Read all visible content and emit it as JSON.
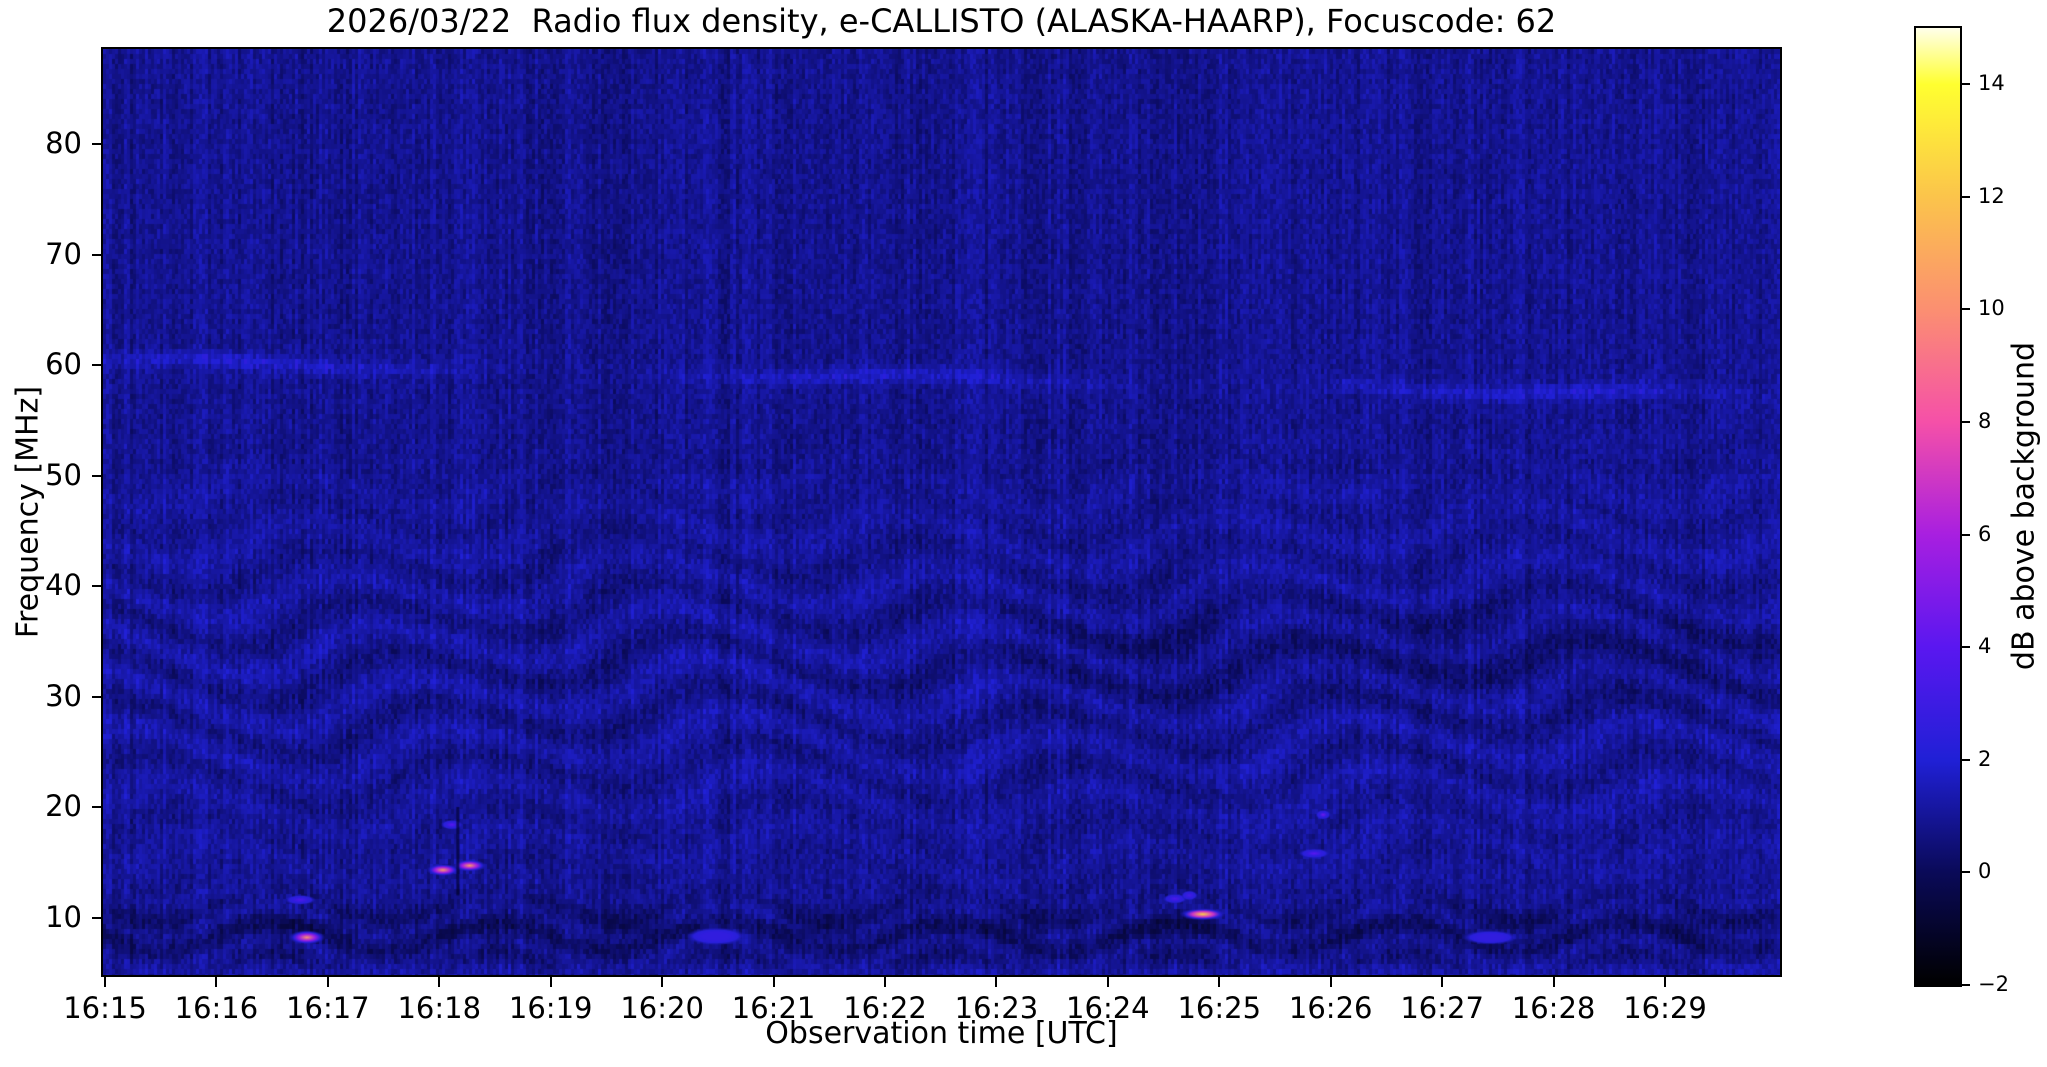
{
  "figure": {
    "title": "2026/03/22  Radio flux density, e-CALLISTO (ALASKA-HAARP), Focuscode: 62",
    "xlabel": "Observation time [UTC]",
    "ylabel": "Frequency [MHz]"
  },
  "chart_data": {
    "type": "heatmap",
    "subtype": "radio-spectrogram",
    "title": "2026/03/22  Radio flux density, e-CALLISTO (ALASKA-HAARP), Focuscode: 62",
    "xlabel": "Observation time [UTC]",
    "ylabel": "Frequency [MHz]",
    "x_tick_labels": [
      "16:15",
      "16:16",
      "16:17",
      "16:18",
      "16:19",
      "16:20",
      "16:21",
      "16:22",
      "16:23",
      "16:24",
      "16:25",
      "16:26",
      "16:27",
      "16:28",
      "16:29"
    ],
    "x_range_minutes": [
      0,
      15.05
    ],
    "x_start_utc": "16:15",
    "y_ticks_mhz": [
      10,
      20,
      30,
      40,
      50,
      60,
      70,
      80
    ],
    "y_range_mhz": [
      4.8,
      88.6
    ],
    "grid": false,
    "background_level_db": 1.0,
    "colorbar": {
      "label": "dB above background",
      "tick_values": [
        -2,
        0,
        2,
        4,
        6,
        8,
        10,
        12,
        14
      ],
      "value_range": [
        -2,
        15
      ],
      "colormap": "gnuplot2-like (black-blue-violet-magenta-pink-orange-yellow-white)",
      "stops": [
        [
          -2,
          "#000000"
        ],
        [
          0,
          "#0a0a58"
        ],
        [
          2,
          "#2020d6"
        ],
        [
          4,
          "#5a17f0"
        ],
        [
          6,
          "#a81fe0"
        ],
        [
          8,
          "#f550a8"
        ],
        [
          10,
          "#fb8f71"
        ],
        [
          12,
          "#fbc44b"
        ],
        [
          14,
          "#ffff30"
        ],
        [
          15,
          "#ffffea"
        ]
      ]
    },
    "bursts": [
      {
        "time_utc": "16:16:50",
        "t_min": 1.83,
        "freq_mhz": 8.2,
        "peak_db": 10.0,
        "dur_min": 0.33,
        "bw_mhz": 1.3
      },
      {
        "time_utc": "16:16:47",
        "t_min": 1.77,
        "freq_mhz": 11.6,
        "peak_db": 3.6,
        "dur_min": 0.28,
        "bw_mhz": 0.9
      },
      {
        "time_utc": "16:18:03",
        "t_min": 3.05,
        "freq_mhz": 14.3,
        "peak_db": 10.5,
        "dur_min": 0.3,
        "bw_mhz": 1.1
      },
      {
        "time_utc": "16:18:17",
        "t_min": 3.29,
        "freq_mhz": 14.7,
        "peak_db": 10.5,
        "dur_min": 0.3,
        "bw_mhz": 1.1
      },
      {
        "time_utc": "16:18:08",
        "t_min": 3.13,
        "freq_mhz": 18.4,
        "peak_db": 4.0,
        "dur_min": 0.2,
        "bw_mhz": 0.8
      },
      {
        "time_utc": "16:20:30",
        "t_min": 5.5,
        "freq_mhz": 8.3,
        "peak_db": 2.6,
        "dur_min": 0.55,
        "bw_mhz": 1.6
      },
      {
        "time_utc": "16:24:37",
        "t_min": 9.62,
        "freq_mhz": 11.7,
        "peak_db": 3.6,
        "dur_min": 0.22,
        "bw_mhz": 0.7
      },
      {
        "time_utc": "16:24:45",
        "t_min": 9.75,
        "freq_mhz": 12.0,
        "peak_db": 3.2,
        "dur_min": 0.15,
        "bw_mhz": 0.5
      },
      {
        "time_utc": "16:24:52",
        "t_min": 9.87,
        "freq_mhz": 10.3,
        "peak_db": 12.5,
        "dur_min": 0.42,
        "bw_mhz": 1.1
      },
      {
        "time_utc": "16:25:52",
        "t_min": 10.87,
        "freq_mhz": 15.8,
        "peak_db": 4.0,
        "dur_min": 0.28,
        "bw_mhz": 0.6
      },
      {
        "time_utc": "16:25:57",
        "t_min": 10.95,
        "freq_mhz": 19.3,
        "peak_db": 4.5,
        "dur_min": 0.14,
        "bw_mhz": 0.8
      },
      {
        "time_utc": "16:27:27",
        "t_min": 12.45,
        "freq_mhz": 8.2,
        "peak_db": 2.6,
        "dur_min": 0.5,
        "bw_mhz": 1.3
      }
    ],
    "drift_line": {
      "freq_start_mhz": 60.4,
      "freq_end_mhz": 57.2,
      "wobble_mhz": 0.3,
      "note": "faint brighter slowly-drifting line across full time range"
    },
    "gap_column": {
      "t_min": 3.18,
      "freq_low_mhz": 12,
      "freq_high_mhz": 20
    },
    "texture": {
      "vertical_striation_db": 0.35,
      "grain_db": 0.45,
      "chevron_band_mhz": [
        14,
        52
      ],
      "dark_patch": {
        "t_after_min": 7.8,
        "freq_center_mhz": 34,
        "depth_db": 0.35
      },
      "bottom_wave_band_mhz": [
        5,
        12
      ]
    }
  }
}
